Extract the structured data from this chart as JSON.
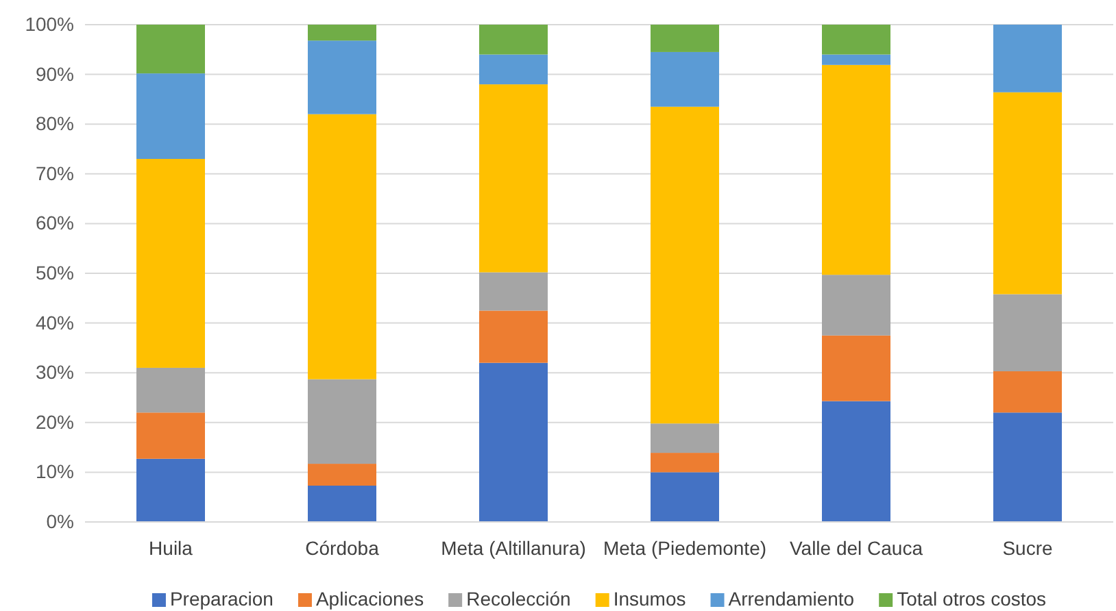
{
  "chart_data": {
    "type": "bar",
    "stacked": true,
    "categories": [
      "Huila",
      "Córdoba",
      "Meta (Altillanura)",
      "Meta (Piedemonte)",
      "Valle del Cauca",
      "Sucre"
    ],
    "series": [
      {
        "name": "Preparacion",
        "color": "#4472c4",
        "values": [
          12.7,
          7.3,
          32,
          10,
          24.3,
          22
        ]
      },
      {
        "name": "Aplicaciones",
        "color": "#ed7d31",
        "values": [
          9.3,
          4.4,
          10.5,
          3.9,
          13.2,
          8.3
        ]
      },
      {
        "name": "Recolección",
        "color": "#a5a5a5",
        "values": [
          9,
          17,
          7.7,
          5.9,
          12.2,
          15.5
        ]
      },
      {
        "name": "Insumos",
        "color": "#ffc000",
        "values": [
          42,
          53.3,
          37.8,
          63.7,
          42.2,
          40.6
        ]
      },
      {
        "name": "Arrendamiento",
        "color": "#5b9bd5",
        "values": [
          17.2,
          14.8,
          6,
          11,
          2.1,
          13.6
        ]
      },
      {
        "name": "Total otros costos",
        "color": "#70ad47",
        "values": [
          9.8,
          3.2,
          6,
          5.5,
          6,
          0
        ]
      }
    ],
    "ylim": [
      0,
      100
    ],
    "yticks": [
      {
        "value": 0,
        "label": "0%"
      },
      {
        "value": 10,
        "label": "10%"
      },
      {
        "value": 20,
        "label": "20%"
      },
      {
        "value": 30,
        "label": "30%"
      },
      {
        "value": 40,
        "label": "40%"
      },
      {
        "value": 50,
        "label": "50%"
      },
      {
        "value": 60,
        "label": "60%"
      },
      {
        "value": 70,
        "label": "70%"
      },
      {
        "value": 80,
        "label": "80%"
      },
      {
        "value": 90,
        "label": "90%"
      },
      {
        "value": 100,
        "label": "100%"
      }
    ],
    "grid": "y",
    "legend": "bottom"
  }
}
